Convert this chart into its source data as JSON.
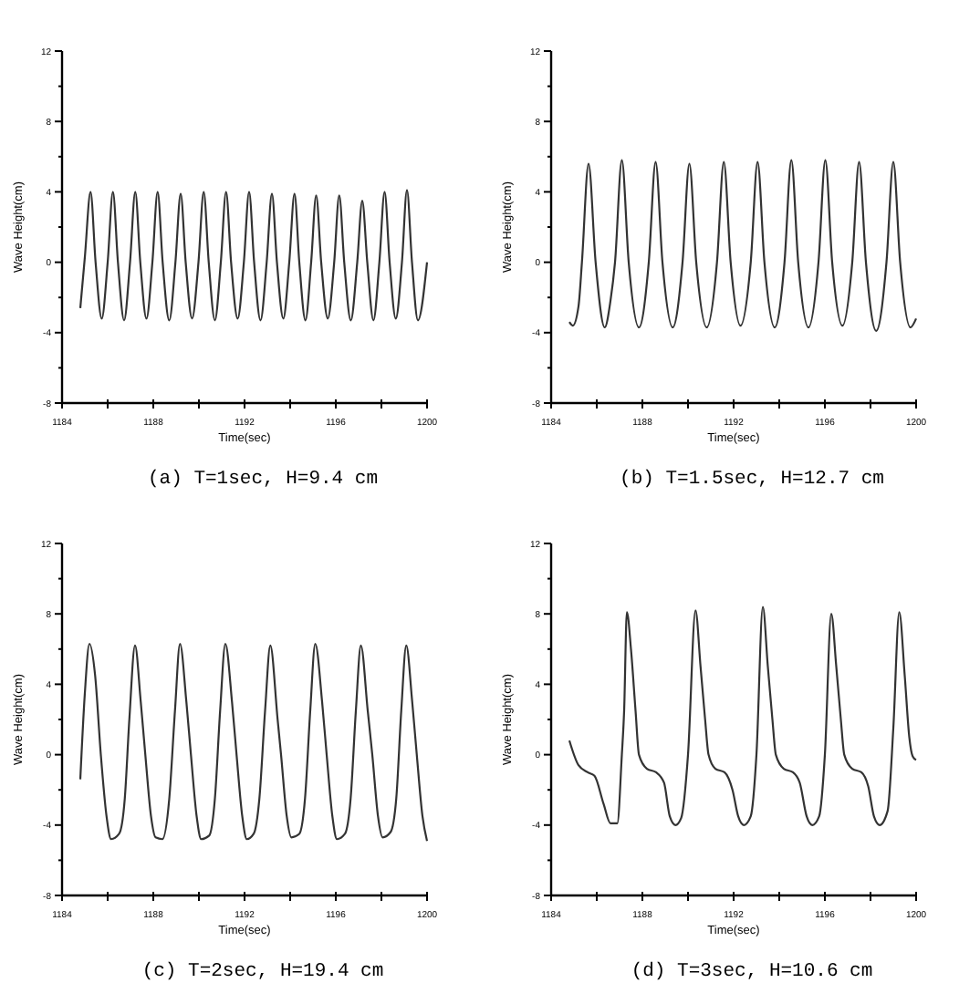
{
  "chart_data": [
    {
      "type": "line",
      "title": "(a) T=1sec, H=9.4 cm",
      "xlabel": "Time(sec)",
      "ylabel": "Wave Height(cm)",
      "xlim": [
        1184,
        1200
      ],
      "ylim": [
        -8,
        12
      ],
      "xticks": [
        1184,
        {
          "value": 1186,
          "label": null
        },
        1188,
        {
          "value": 1190,
          "label": null
        },
        1192,
        {
          "value": 1194,
          "label": null
        },
        1196,
        {
          "value": 1198,
          "label": null
        },
        1200
      ],
      "yticks": [
        -8,
        {
          "value": -6,
          "label": null
        },
        -4,
        {
          "value": -2,
          "label": null
        },
        0,
        {
          "value": 2,
          "label": null
        },
        4,
        {
          "value": 6,
          "label": null
        },
        8,
        {
          "value": 10,
          "label": null
        },
        12
      ],
      "grid": false,
      "series": [
        {
          "color": "#333333",
          "x": [
            1184.8,
            1185.0,
            1185.25,
            1185.47,
            1185.74,
            1186.0,
            1186.23,
            1186.45,
            1186.72,
            1186.98,
            1187.21,
            1187.43,
            1187.7,
            1187.96,
            1188.19,
            1188.41,
            1188.7,
            1188.97,
            1189.2,
            1189.42,
            1189.7,
            1189.98,
            1190.21,
            1190.43,
            1190.7,
            1190.96,
            1191.19,
            1191.41,
            1191.7,
            1191.97,
            1192.2,
            1192.42,
            1192.7,
            1192.97,
            1193.2,
            1193.42,
            1193.7,
            1193.96,
            1194.19,
            1194.4,
            1194.67,
            1194.92,
            1195.14,
            1195.36,
            1195.65,
            1195.93,
            1196.15,
            1196.37,
            1196.66,
            1196.94,
            1197.16,
            1197.38,
            1197.65,
            1197.91,
            1198.14,
            1198.36,
            1198.63,
            1198.9,
            1199.12,
            1199.34,
            1199.6,
            1200.0
          ],
          "values": [
            -2.6,
            0.3,
            4.0,
            0,
            -3.2,
            0,
            4.0,
            0,
            -3.3,
            0,
            4.0,
            0,
            -3.2,
            0,
            4.0,
            0,
            -3.3,
            0,
            3.9,
            0,
            -3.2,
            0,
            4.0,
            0,
            -3.3,
            0,
            4.0,
            0,
            -3.2,
            0,
            4.0,
            0,
            -3.3,
            0,
            3.9,
            0,
            -3.2,
            0,
            3.9,
            0,
            -3.3,
            0,
            3.8,
            0,
            -3.2,
            0,
            3.8,
            0,
            -3.3,
            0,
            3.5,
            0,
            -3.3,
            0,
            4.0,
            0,
            -3.2,
            0,
            4.1,
            0,
            -3.3,
            0
          ]
        }
      ]
    },
    {
      "type": "line",
      "title": "(b) T=1.5sec, H=12.7 cm",
      "xlabel": "Time(sec)",
      "ylabel": "Wave Height(cm)",
      "xlim": [
        1184,
        1200
      ],
      "ylim": [
        -8,
        12
      ],
      "xticks": [
        1184,
        {
          "value": 1186,
          "label": null
        },
        1188,
        {
          "value": 1190,
          "label": null
        },
        1192,
        {
          "value": 1194,
          "label": null
        },
        1196,
        {
          "value": 1198,
          "label": null
        },
        1200
      ],
      "yticks": [
        -8,
        {
          "value": -6,
          "label": null
        },
        -4,
        {
          "value": -2,
          "label": null
        },
        0,
        {
          "value": 2,
          "label": null
        },
        4,
        {
          "value": 6,
          "label": null
        },
        8,
        {
          "value": 10,
          "label": null
        },
        12
      ],
      "grid": false,
      "series": [
        {
          "color": "#333333",
          "x": [
            1184.8,
            1184.95,
            1185.2,
            1185.35,
            1185.64,
            1185.95,
            1186.35,
            1186.6,
            1186.8,
            1187.1,
            1187.4,
            1187.85,
            1188.28,
            1188.58,
            1188.88,
            1189.33,
            1189.76,
            1190.06,
            1190.36,
            1190.82,
            1191.27,
            1191.57,
            1191.87,
            1192.3,
            1192.75,
            1193.05,
            1193.35,
            1193.8,
            1194.23,
            1194.53,
            1194.83,
            1195.28,
            1195.72,
            1196.02,
            1196.32,
            1196.77,
            1197.2,
            1197.5,
            1197.8,
            1198.25,
            1198.7,
            1199.0,
            1199.3,
            1199.75,
            1200.0
          ],
          "values": [
            -3.4,
            -3.6,
            -2.5,
            0,
            5.6,
            0,
            -3.7,
            -2.2,
            0,
            5.8,
            0,
            -3.7,
            0,
            5.7,
            0,
            -3.7,
            0,
            5.6,
            0,
            -3.7,
            0,
            5.7,
            0,
            -3.6,
            0,
            5.7,
            0,
            -3.7,
            0,
            5.8,
            0,
            -3.7,
            0,
            5.8,
            0,
            -3.6,
            0,
            5.7,
            0,
            -3.9,
            0,
            5.7,
            0,
            -3.7,
            -3.2
          ]
        }
      ]
    },
    {
      "type": "line",
      "title": "(c) T=2sec, H=19.4 cm",
      "xlabel": "Time(sec)",
      "ylabel": "Wave Height(cm)",
      "xlim": [
        1184,
        1200
      ],
      "ylim": [
        -8,
        12
      ],
      "xticks": [
        1184,
        {
          "value": 1186,
          "label": null
        },
        1188,
        {
          "value": 1190,
          "label": null
        },
        1192,
        {
          "value": 1194,
          "label": null
        },
        1196,
        {
          "value": 1198,
          "label": null
        },
        1200
      ],
      "yticks": [
        -8,
        {
          "value": -6,
          "label": null
        },
        -4,
        {
          "value": -2,
          "label": null
        },
        0,
        {
          "value": 2,
          "label": null
        },
        4,
        {
          "value": 6,
          "label": null
        },
        8,
        {
          "value": 10,
          "label": null
        },
        12
      ],
      "grid": false,
      "series": [
        {
          "color": "#333333",
          "x": [
            1184.8,
            1185.0,
            1185.2,
            1185.45,
            1185.7,
            1185.95,
            1186.15,
            1186.5,
            1186.75,
            1186.95,
            1187.2,
            1187.45,
            1187.65,
            1187.9,
            1188.1,
            1188.4,
            1188.7,
            1188.95,
            1189.17,
            1189.45,
            1189.65,
            1189.9,
            1190.1,
            1190.45,
            1190.7,
            1190.93,
            1191.16,
            1191.45,
            1191.65,
            1191.9,
            1192.1,
            1192.4,
            1192.65,
            1192.9,
            1193.13,
            1193.45,
            1193.6,
            1193.85,
            1194.05,
            1194.4,
            1194.65,
            1194.88,
            1195.1,
            1195.4,
            1195.6,
            1195.85,
            1196.05,
            1196.4,
            1196.65,
            1196.88,
            1197.1,
            1197.4,
            1197.6,
            1197.85,
            1198.05,
            1198.4,
            1198.65,
            1198.87,
            1199.09,
            1199.35,
            1199.55,
            1199.8,
            1200.0
          ],
          "values": [
            -1.4,
            3.5,
            6.3,
            4.5,
            0,
            -3.5,
            -4.8,
            -4.5,
            -2.5,
            2,
            6.2,
            3,
            0,
            -3.5,
            -4.7,
            -4.8,
            -2.5,
            2.5,
            6.3,
            3,
            0,
            -3.5,
            -4.8,
            -4.6,
            -2.5,
            2.5,
            6.3,
            3,
            0,
            -3.5,
            -4.8,
            -4.5,
            -2.5,
            2.5,
            6.2,
            2,
            0,
            -3.5,
            -4.7,
            -4.5,
            -2.5,
            2.5,
            6.3,
            3,
            0,
            -3.5,
            -4.8,
            -4.5,
            -2.5,
            2.5,
            6.2,
            2.5,
            0,
            -3.5,
            -4.7,
            -4.4,
            -2.5,
            2.5,
            6.2,
            3,
            0,
            -3.5,
            -4.9
          ]
        }
      ]
    },
    {
      "type": "line",
      "title": "(d) T=3sec, H=10.6 cm",
      "xlabel": "Time(sec)",
      "ylabel": "Wave Height(cm)",
      "xlim": [
        1184,
        1200
      ],
      "ylim": [
        -8,
        12
      ],
      "xticks": [
        1184,
        {
          "value": 1186,
          "label": null
        },
        1188,
        {
          "value": 1190,
          "label": null
        },
        1192,
        {
          "value": 1194,
          "label": null
        },
        1196,
        {
          "value": 1198,
          "label": null
        },
        1200
      ],
      "yticks": [
        -8,
        {
          "value": -6,
          "label": null
        },
        -4,
        {
          "value": -2,
          "label": null
        },
        0,
        {
          "value": 2,
          "label": null
        },
        4,
        {
          "value": 6,
          "label": null
        },
        8,
        {
          "value": 10,
          "label": null
        },
        12
      ],
      "grid": false,
      "series": [
        {
          "color": "#333333",
          "x": [
            1184.8,
            1185.2,
            1185.6,
            1185.9,
            1186.3,
            1186.6,
            1186.9,
            1187.1,
            1187.2,
            1187.32,
            1187.5,
            1187.7,
            1187.85,
            1188.2,
            1188.6,
            1188.95,
            1189.2,
            1189.45,
            1189.7,
            1190.0,
            1190.33,
            1190.55,
            1190.75,
            1190.9,
            1191.2,
            1191.6,
            1191.95,
            1192.2,
            1192.45,
            1192.75,
            1193.0,
            1193.28,
            1193.5,
            1193.7,
            1193.85,
            1194.2,
            1194.6,
            1194.9,
            1195.2,
            1195.45,
            1195.75,
            1196.0,
            1196.28,
            1196.5,
            1196.7,
            1196.85,
            1197.2,
            1197.6,
            1197.9,
            1198.15,
            1198.4,
            1198.75,
            1199.0,
            1199.26,
            1199.5,
            1199.7,
            1199.85,
            1200.0
          ],
          "values": [
            0.8,
            -0.6,
            -1.0,
            -1.2,
            -2.8,
            -3.9,
            -3.9,
            0,
            2.5,
            8.1,
            6,
            2.5,
            0,
            -0.8,
            -1.0,
            -1.6,
            -3.5,
            -4.0,
            -3.6,
            0,
            8.2,
            5,
            2,
            0,
            -0.8,
            -1.0,
            -2,
            -3.5,
            -4.0,
            -3.5,
            0,
            8.4,
            5,
            2,
            0,
            -0.8,
            -1.0,
            -1.6,
            -3.5,
            -4.0,
            -3.5,
            0,
            8.0,
            5,
            2,
            0,
            -0.8,
            -1.0,
            -1.8,
            -3.5,
            -4.0,
            -3.2,
            1.5,
            8.1,
            4.5,
            1,
            -0.1,
            -0.3
          ]
        }
      ]
    }
  ]
}
